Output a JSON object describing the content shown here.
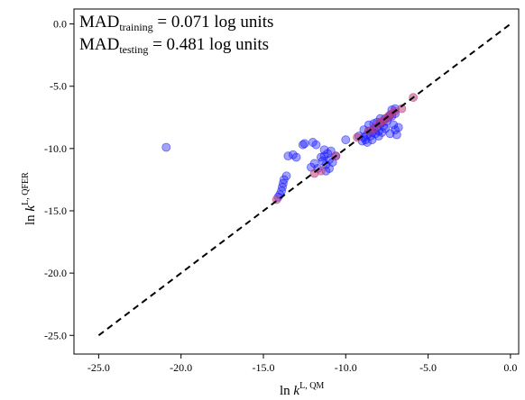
{
  "chart_data": {
    "type": "scatter",
    "xlim": [
      -26.5,
      0.5
    ],
    "ylim": [
      -26.5,
      1.2
    ],
    "x_ticks": [
      -25.0,
      -20.0,
      -15.0,
      -10.0,
      -5.0,
      0.0
    ],
    "y_ticks": [
      0.0,
      -5.0,
      -10.0,
      -15.0,
      -20.0,
      -25.0
    ],
    "x_tick_labels": [
      "-25.0",
      "-20.0",
      "-15.0",
      "-10.0",
      "-5.0",
      "0.0"
    ],
    "y_tick_labels": [
      "0.0",
      "-5.0",
      "-10.0",
      "-15.0",
      "-20.0",
      "-25.0"
    ],
    "xlabel": {
      "prefix": "ln ",
      "var": "k",
      "sup": "L, QM"
    },
    "ylabel": {
      "prefix": "ln ",
      "var": "k",
      "sup": "L, QFER"
    },
    "annotation": {
      "line1_main": "MAD",
      "line1_sub": "training",
      "line1_rest": " = 0.071 log units",
      "line2_main": "MAD",
      "line2_sub": "testing",
      "line2_rest": " = 0.481 log units"
    },
    "reference_line": {
      "x": [
        -25,
        0
      ],
      "y": [
        -25,
        0
      ],
      "style": "dashed",
      "color": "#000000"
    },
    "grid": false,
    "series": [
      {
        "color": "#1a1aff",
        "points": [
          [
            -20.9,
            -9.9
          ],
          [
            -14.1,
            -13.9
          ],
          [
            -14.0,
            -13.7
          ],
          [
            -13.9,
            -13.4
          ],
          [
            -13.85,
            -13.1
          ],
          [
            -13.8,
            -12.8
          ],
          [
            -13.75,
            -12.5
          ],
          [
            -13.6,
            -12.2
          ],
          [
            -13.5,
            -10.6
          ],
          [
            -13.2,
            -10.5
          ],
          [
            -13.0,
            -10.7
          ],
          [
            -12.6,
            -9.7
          ],
          [
            -12.5,
            -9.6
          ],
          [
            -12.0,
            -9.5
          ],
          [
            -11.8,
            -9.7
          ],
          [
            -12.1,
            -11.5
          ],
          [
            -11.9,
            -11.2
          ],
          [
            -11.7,
            -11.6
          ],
          [
            -11.4,
            -11.0
          ],
          [
            -11.2,
            -11.3
          ],
          [
            -11.0,
            -10.9
          ],
          [
            -10.8,
            -11.1
          ],
          [
            -11.5,
            -10.7
          ],
          [
            -11.3,
            -10.6
          ],
          [
            -11.1,
            -10.4
          ],
          [
            -10.9,
            -10.2
          ],
          [
            -10.6,
            -10.6
          ],
          [
            -11.3,
            -10.1
          ],
          [
            -11.2,
            -11.8
          ],
          [
            -11.0,
            -11.6
          ],
          [
            -10.0,
            -9.3
          ],
          [
            -9.0,
            -9.4
          ],
          [
            -8.9,
            -9.1
          ],
          [
            -8.8,
            -9.3
          ],
          [
            -8.7,
            -8.9
          ],
          [
            -8.6,
            -8.6
          ],
          [
            -8.5,
            -9.0
          ],
          [
            -8.4,
            -8.7
          ],
          [
            -8.3,
            -8.4
          ],
          [
            -8.2,
            -8.8
          ],
          [
            -8.1,
            -8.3
          ],
          [
            -8.0,
            -8.6
          ],
          [
            -7.9,
            -8.0
          ],
          [
            -7.8,
            -7.9
          ],
          [
            -7.7,
            -8.2
          ],
          [
            -7.6,
            -7.6
          ],
          [
            -7.5,
            -7.8
          ],
          [
            -7.4,
            -7.5
          ],
          [
            -7.3,
            -7.3
          ],
          [
            -7.2,
            -7.4
          ],
          [
            -7.1,
            -8.1
          ],
          [
            -7.0,
            -8.5
          ],
          [
            -6.9,
            -8.9
          ],
          [
            -6.8,
            -8.3
          ],
          [
            -7.0,
            -7.2
          ],
          [
            -8.6,
            -8.1
          ],
          [
            -8.3,
            -8.0
          ],
          [
            -8.9,
            -8.5
          ],
          [
            -9.2,
            -9.0
          ],
          [
            -8.7,
            -9.5
          ],
          [
            -8.4,
            -9.3
          ],
          [
            -8.0,
            -9.0
          ],
          [
            -7.8,
            -8.7
          ],
          [
            -7.6,
            -8.4
          ],
          [
            -7.2,
            -6.9
          ],
          [
            -7.0,
            -6.8
          ],
          [
            -7.9,
            -7.6
          ],
          [
            -8.1,
            -7.9
          ],
          [
            -7.3,
            -8.8
          ]
        ]
      },
      {
        "color": "#c0407a",
        "points": [
          [
            -14.2,
            -14.1
          ],
          [
            -11.9,
            -12.0
          ],
          [
            -11.5,
            -11.8
          ],
          [
            -10.6,
            -10.6
          ],
          [
            -9.3,
            -9.1
          ],
          [
            -8.6,
            -8.6
          ],
          [
            -8.3,
            -8.4
          ],
          [
            -8.0,
            -8.0
          ],
          [
            -7.8,
            -7.8
          ],
          [
            -7.6,
            -7.7
          ],
          [
            -7.4,
            -7.4
          ],
          [
            -7.2,
            -7.2
          ],
          [
            -7.0,
            -7.0
          ],
          [
            -6.6,
            -6.8
          ],
          [
            -5.9,
            -5.9
          ]
        ]
      }
    ]
  }
}
